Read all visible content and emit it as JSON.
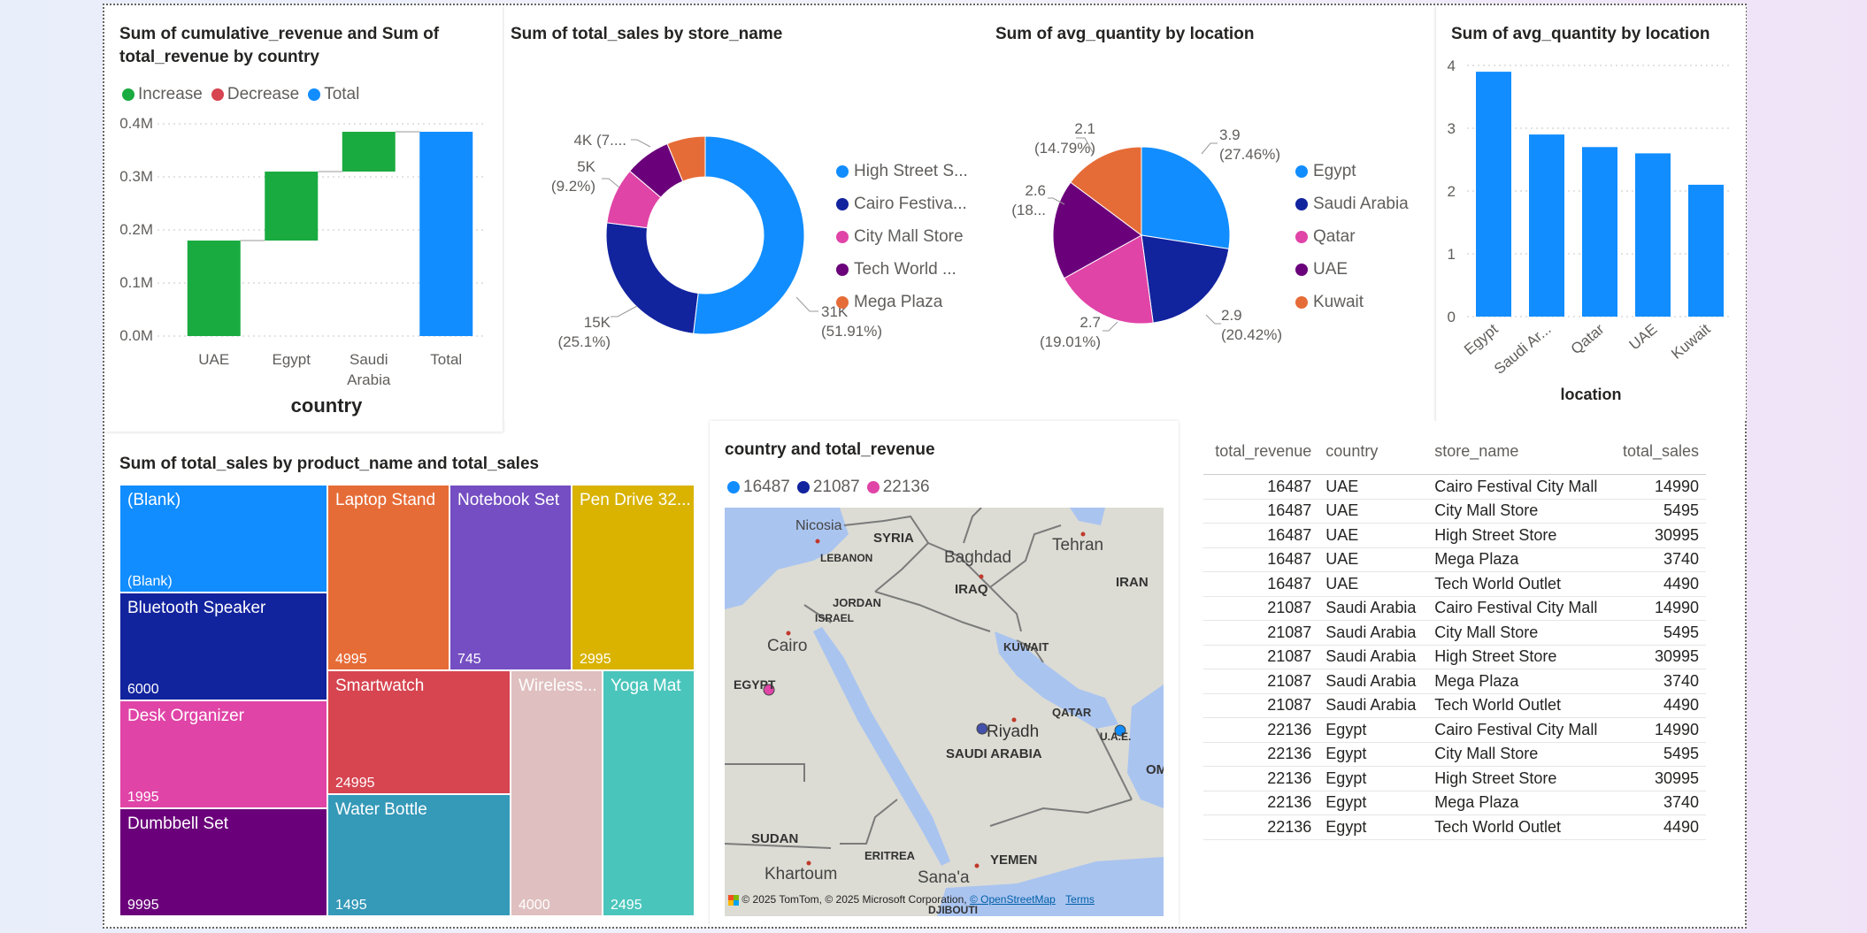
{
  "waterfall": {
    "title": "Sum of cumulative_revenue and Sum of total_revenue by country",
    "legend": [
      {
        "label": "Increase",
        "color": "#1aab40"
      },
      {
        "label": "Decrease",
        "color": "#d64550"
      },
      {
        "label": "Total",
        "color": "#118dff"
      }
    ],
    "xlabel": "country",
    "yticks": [
      "0.0M",
      "0.1M",
      "0.2M",
      "0.3M",
      "0.4M"
    ]
  },
  "donut": {
    "title": "Sum of total_sales by store_name",
    "legend": [
      "High Street S...",
      "Cairo Festiva...",
      "City Mall Store",
      "Tech World ...",
      "Mega Plaza"
    ],
    "labels": [
      {
        "v": "31K",
        "p": "(51.91%)"
      },
      {
        "v": "15K",
        "p": "(25.1%)"
      },
      {
        "v": "5K",
        "p": "(9.2%)"
      },
      {
        "v": "4K (7....",
        "p": ""
      }
    ]
  },
  "pie": {
    "title": "Sum of avg_quantity by location",
    "legend": [
      "Egypt",
      "Saudi Arabia",
      "Qatar",
      "UAE",
      "Kuwait"
    ],
    "labels": [
      {
        "v": "3.9",
        "p": "(27.46%)"
      },
      {
        "v": "2.9",
        "p": "(20.42%)"
      },
      {
        "v": "2.7",
        "p": "(19.01%)"
      },
      {
        "v": "2.6",
        "p": "(18..."
      },
      {
        "v": "2.1",
        "p": "(14.79%)"
      }
    ]
  },
  "bar": {
    "title": "Sum of avg_quantity by location",
    "xlabel": "location",
    "xticks": [
      "Egypt",
      "Saudi Ar...",
      "Qatar",
      "UAE",
      "Kuwait"
    ]
  },
  "treemap": {
    "title": "Sum of total_sales by product_name and total_sales",
    "cells": [
      {
        "name": "(Blank)",
        "value": "(Blank)"
      },
      {
        "name": "Bluetooth Speaker",
        "value": "6000"
      },
      {
        "name": "Desk Organizer",
        "value": "1995"
      },
      {
        "name": "Dumbbell Set",
        "value": "9995"
      },
      {
        "name": "Laptop Stand",
        "value": "4995"
      },
      {
        "name": "Notebook Set",
        "value": "745"
      },
      {
        "name": "Pen Drive 32...",
        "value": "2995"
      },
      {
        "name": "Smartwatch",
        "value": "24995"
      },
      {
        "name": "Water Bottle",
        "value": "1495"
      },
      {
        "name": "Wireless...",
        "value": "4000"
      },
      {
        "name": "Yoga Mat",
        "value": "2495"
      }
    ]
  },
  "map": {
    "title": "country and total_revenue",
    "legend": [
      {
        "label": "16487",
        "color": "#118dff"
      },
      {
        "label": "21087",
        "color": "#12239e"
      },
      {
        "label": "22136",
        "color": "#e044a7"
      }
    ],
    "places": [
      "Nicosia",
      "SYRIA",
      "LEBANON",
      "Baghdad",
      "Tehran",
      "IRAQ",
      "JORDAN",
      "ISRAEL",
      "IRAN",
      "KUWAIT",
      "Cairo",
      "EGYPT",
      "QATAR",
      "Riyadh",
      "U.A.E.",
      "SAUDI ARABIA",
      "OM",
      "SUDAN",
      "ERITREA",
      "YEMEN",
      "Khartoum",
      "Sana'a",
      "DJIBOUTI"
    ],
    "attribution": "© 2025 TomTom, © 2025 Microsoft Corporation,",
    "osm": "© OpenStreetMap",
    "terms": "Terms"
  },
  "table": {
    "headers": [
      "total_revenue",
      "country",
      "store_name",
      "total_sales"
    ],
    "rows": [
      [
        "16487",
        "UAE",
        "Cairo Festival City Mall",
        "14990"
      ],
      [
        "16487",
        "UAE",
        "City Mall Store",
        "5495"
      ],
      [
        "16487",
        "UAE",
        "High Street Store",
        "30995"
      ],
      [
        "16487",
        "UAE",
        "Mega Plaza",
        "3740"
      ],
      [
        "16487",
        "UAE",
        "Tech World Outlet",
        "4490"
      ],
      [
        "21087",
        "Saudi Arabia",
        "Cairo Festival City Mall",
        "14990"
      ],
      [
        "21087",
        "Saudi Arabia",
        "City Mall Store",
        "5495"
      ],
      [
        "21087",
        "Saudi Arabia",
        "High Street Store",
        "30995"
      ],
      [
        "21087",
        "Saudi Arabia",
        "Mega Plaza",
        "3740"
      ],
      [
        "21087",
        "Saudi Arabia",
        "Tech World Outlet",
        "4490"
      ],
      [
        "22136",
        "Egypt",
        "Cairo Festival City Mall",
        "14990"
      ],
      [
        "22136",
        "Egypt",
        "City Mall Store",
        "5495"
      ],
      [
        "22136",
        "Egypt",
        "High Street Store",
        "30995"
      ],
      [
        "22136",
        "Egypt",
        "Mega Plaza",
        "3740"
      ],
      [
        "22136",
        "Egypt",
        "Tech World Outlet",
        "4490"
      ]
    ]
  },
  "chart_data": [
    {
      "type": "bar",
      "subtype": "waterfall",
      "title": "Sum of cumulative_revenue and Sum of total_revenue by country",
      "xlabel": "country",
      "categories": [
        "UAE",
        "Egypt",
        "Saudi Arabia",
        "Total"
      ],
      "values": [
        0.18,
        0.13,
        0.075,
        0.385
      ],
      "kinds": [
        "Increase",
        "Increase",
        "Increase",
        "Total"
      ],
      "ylim": [
        0,
        0.4
      ],
      "yunit": "M",
      "grid": true,
      "legend_position": "top-left"
    },
    {
      "type": "pie",
      "subtype": "donut",
      "title": "Sum of total_sales by store_name",
      "categories": [
        "High Street S...",
        "Cairo Festiva...",
        "City Mall Store",
        "Tech World ...",
        "Mega Plaza"
      ],
      "values": [
        30995,
        14990,
        5495,
        4490,
        3740
      ],
      "colors": [
        "#118dff",
        "#12239e",
        "#e044a7",
        "#6b007b",
        "#e66c37"
      ],
      "legend_position": "right"
    },
    {
      "type": "pie",
      "title": "Sum of avg_quantity by location",
      "categories": [
        "Egypt",
        "Saudi Arabia",
        "Qatar",
        "UAE",
        "Kuwait"
      ],
      "values": [
        3.9,
        2.9,
        2.7,
        2.6,
        2.1
      ],
      "colors": [
        "#118dff",
        "#12239e",
        "#e044a7",
        "#6b007b",
        "#e66c37"
      ],
      "legend_position": "right"
    },
    {
      "type": "bar",
      "title": "Sum of avg_quantity by location",
      "xlabel": "location",
      "categories": [
        "Egypt",
        "Saudi Arabia",
        "Qatar",
        "UAE",
        "Kuwait"
      ],
      "values": [
        3.9,
        2.9,
        2.7,
        2.6,
        2.1
      ],
      "ylim": [
        0,
        4
      ],
      "yticks": [
        0,
        1,
        2,
        3,
        4
      ],
      "grid": true,
      "color": "#118dff"
    },
    {
      "type": "treemap",
      "title": "Sum of total_sales by product_name and total_sales",
      "categories": [
        "(Blank)",
        "Bluetooth Speaker",
        "Desk Organizer",
        "Dumbbell Set",
        "Laptop Stand",
        "Notebook Set",
        "Pen Drive 32...",
        "Smartwatch",
        "Water Bottle",
        "Wireless...",
        "Yoga Mat"
      ],
      "values": [
        null,
        6000,
        1995,
        9995,
        4995,
        745,
        2995,
        24995,
        1495,
        4000,
        2495
      ],
      "colors": [
        "#118dff",
        "#12239e",
        "#e044a7",
        "#6b007b",
        "#e66c37",
        "#744ec2",
        "#d9b300",
        "#d64550",
        "#3599b8",
        "#dfbfbf",
        "#4ac5bb"
      ]
    }
  ]
}
